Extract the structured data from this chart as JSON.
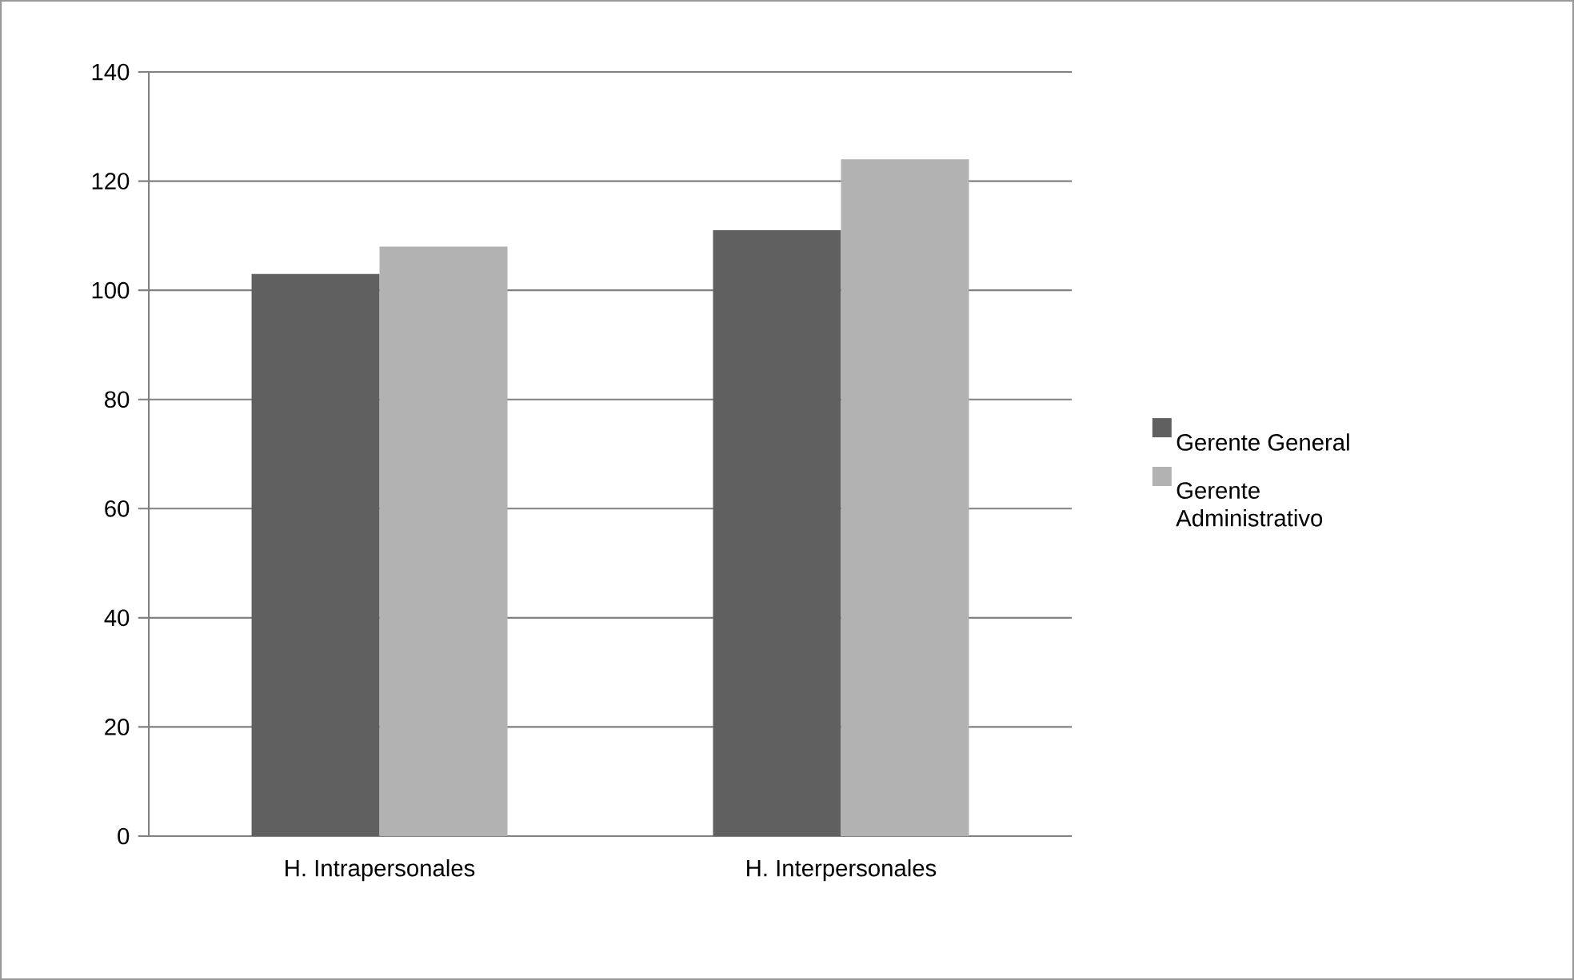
{
  "chart_data": {
    "type": "bar",
    "categories": [
      "H. Intrapersonales",
      "H.  Interpersonales"
    ],
    "series": [
      {
        "name": "Gerente General",
        "color": "#606060",
        "values": [
          103,
          111
        ]
      },
      {
        "name": "Gerente Administrativo",
        "color": "#b2b2b2",
        "values": [
          108,
          124
        ]
      }
    ],
    "ylim": [
      0,
      140
    ],
    "yticks": [
      0,
      20,
      40,
      60,
      80,
      100,
      120,
      140
    ],
    "grid": "y",
    "legend": "right"
  }
}
